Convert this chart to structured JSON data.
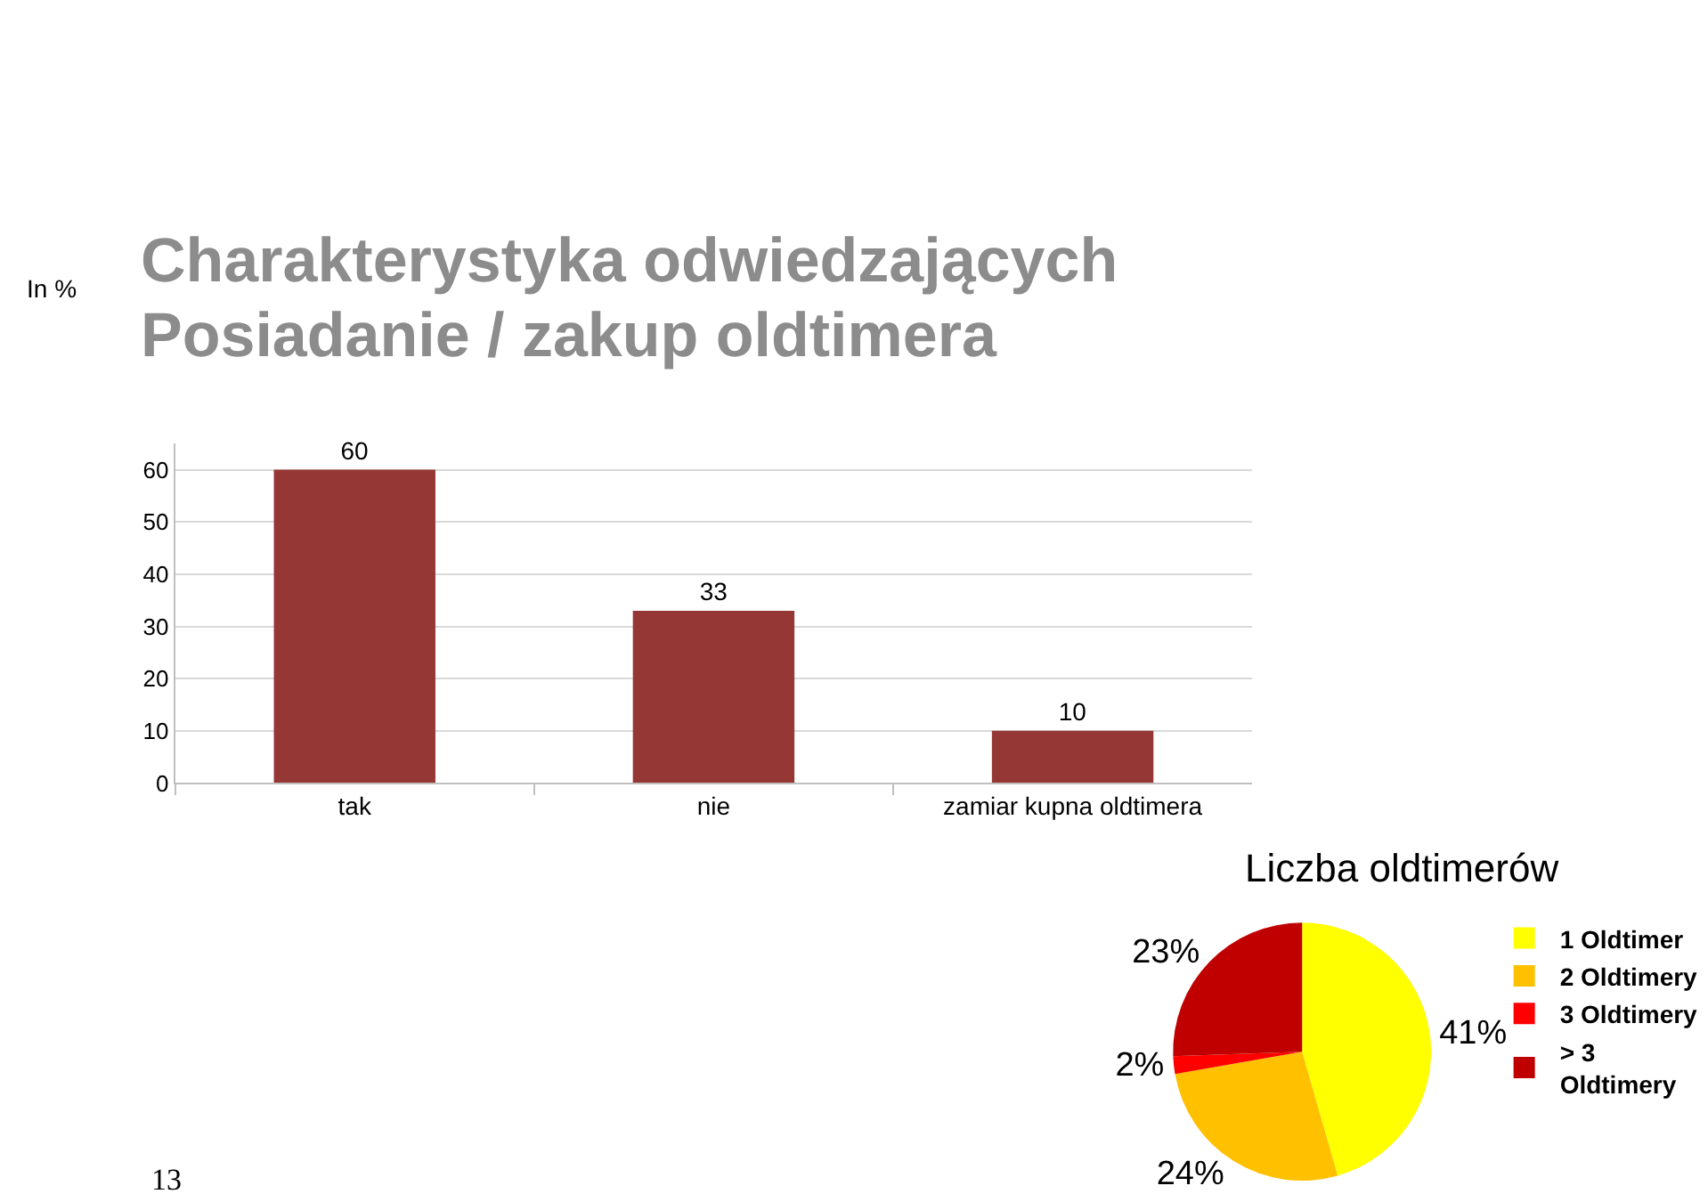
{
  "chart_data": [
    {
      "type": "bar",
      "title": "Charakterystyka odwiedzających",
      "subtitle": "Posiadanie / zakup oldtimera",
      "ylabel": "In %",
      "categories": [
        "tak",
        "nie",
        "zamiar kupna oldtimera"
      ],
      "values": [
        60,
        33,
        10
      ],
      "color": "#953735",
      "ylim": [
        0,
        65
      ],
      "yticks": [
        0,
        10,
        20,
        30,
        40,
        50,
        60
      ],
      "grid": "y",
      "data_labels": true,
      "annotations": [
        "13"
      ]
    },
    {
      "type": "pie",
      "title": "Liczba oldtimerów",
      "categories": [
        "1 Oldtimer",
        "2 Oldtimery",
        "3 Oldtimery",
        "> 3 Oldtimery"
      ],
      "values": [
        41,
        24,
        2,
        23
      ],
      "colors": [
        "#ffff00",
        "#ffc000",
        "#ff0000",
        "#c00000"
      ],
      "value_labels": [
        "41%",
        "24%",
        "2%",
        "23%"
      ],
      "legend": "right"
    }
  ]
}
